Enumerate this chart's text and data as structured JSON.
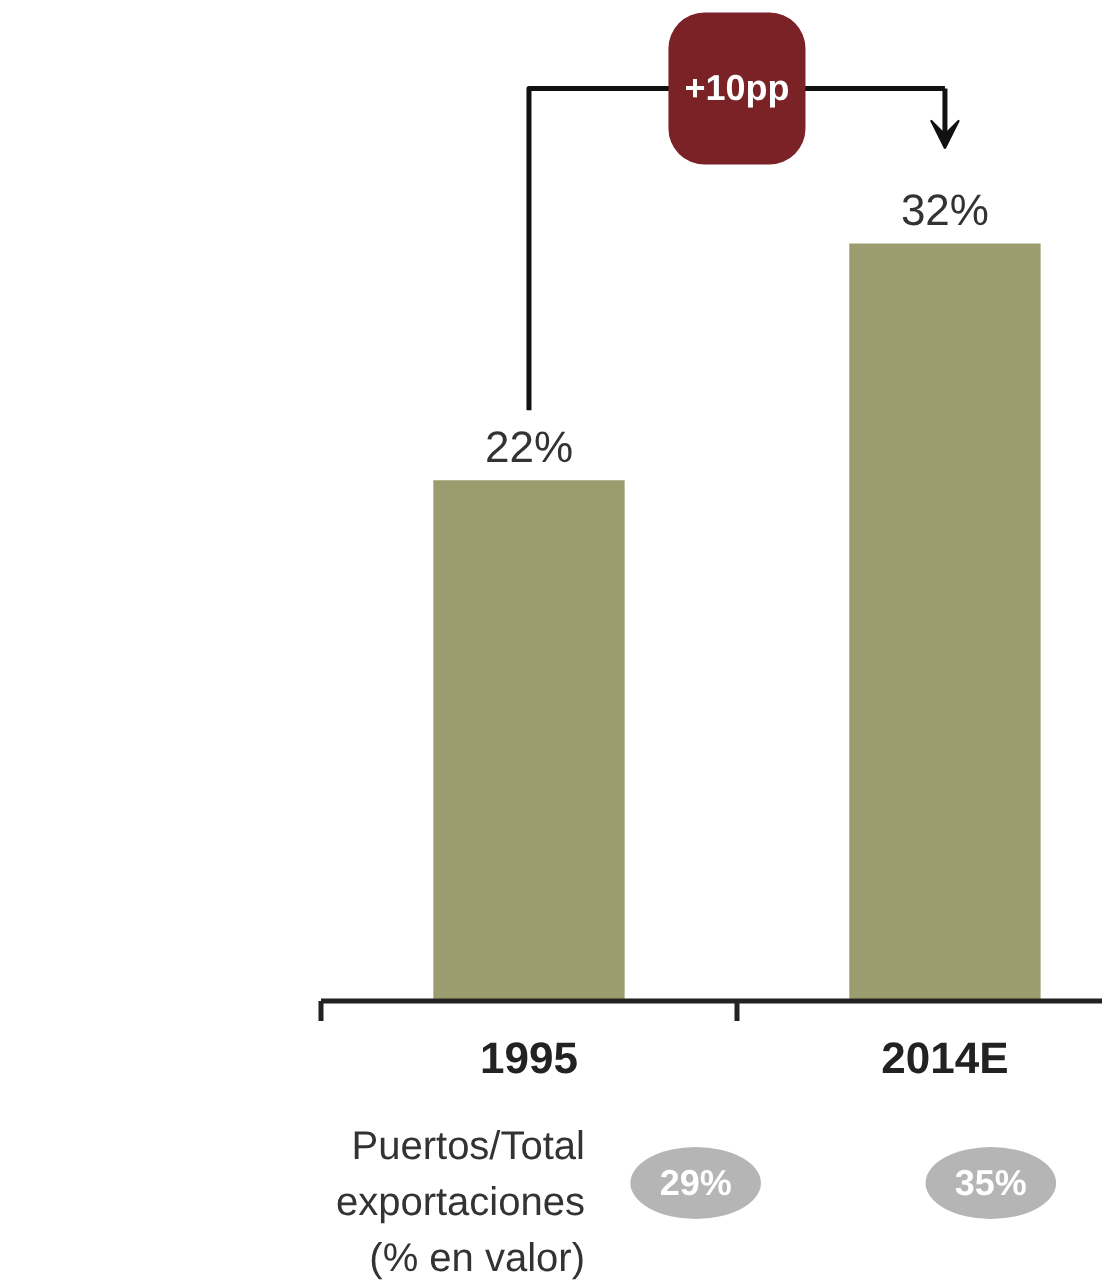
{
  "chart_data": {
    "type": "bar",
    "categories": [
      "1995",
      "2014E"
    ],
    "values": [
      22,
      32
    ],
    "value_labels": [
      "22%",
      "32%"
    ],
    "color": "#9c9d6e",
    "annotations": [
      "+10pp",
      "Puertos/Total\nexportaciones\n(% en valor)",
      "29%",
      "35%"
    ]
  }
}
